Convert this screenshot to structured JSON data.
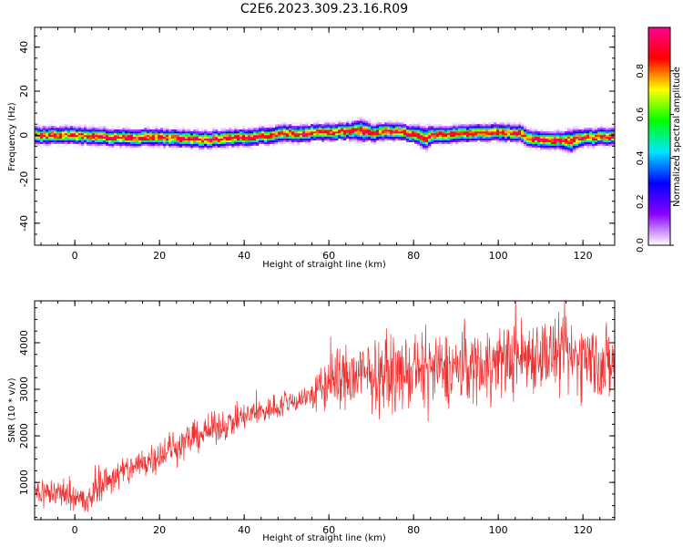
{
  "figure": {
    "title": "C2E6.2023.309.23.16.R09"
  },
  "chart_data": [
    {
      "type": "heatmap",
      "name": "spectrogram",
      "xlabel": "Height of straight line (km)",
      "ylabel": "Frequency (Hz)",
      "xlim": [
        -9.5,
        127.5
      ],
      "ylim": [
        -50,
        49
      ],
      "x_ticks": [
        0,
        20,
        40,
        60,
        80,
        100,
        120
      ],
      "y_ticks": [
        -40,
        -20,
        0,
        20,
        40
      ],
      "colorbar": {
        "label": "Normalized spectral amplitude",
        "range": [
          0,
          1
        ],
        "ticks": [
          0.0,
          0.2,
          0.4,
          0.6,
          0.8
        ],
        "tick_labels": [
          "0.0",
          "0.2",
          "0.4",
          "0.6",
          "0.8"
        ],
        "colormap": [
          "#ffffff",
          "#8a00ff",
          "#0000ff",
          "#00e5ff",
          "#00ff00",
          "#ffff00",
          "#ff0000",
          "#ff0090"
        ]
      },
      "ridge": {
        "x": [
          -9,
          0,
          10,
          20,
          30,
          40,
          44,
          50,
          55,
          60,
          65,
          68,
          70,
          75,
          80,
          83,
          85,
          90,
          95,
          100,
          105,
          108,
          110,
          115,
          117,
          120,
          127
        ],
        "y": [
          0,
          0,
          -1,
          -1,
          -2,
          -1,
          -0.5,
          1,
          1,
          1.5,
          2,
          2.5,
          1,
          2,
          0.5,
          -1,
          0,
          0.5,
          1,
          1.5,
          1,
          -2,
          -2,
          -2,
          -3,
          -1,
          -0.5
        ],
        "half_width_hz": [
          3,
          3,
          3,
          3,
          3,
          3,
          3,
          3,
          3,
          3,
          3,
          4,
          3,
          3,
          3,
          4,
          3,
          3,
          3,
          3,
          3,
          3,
          3,
          3,
          4,
          3,
          3
        ]
      },
      "grid": false
    },
    {
      "type": "line",
      "name": "snr",
      "xlabel": "Height of straight line (km)",
      "ylabel": "SNR (10 * v/v)",
      "xlim": [
        -9.5,
        127.5
      ],
      "ylim": [
        200,
        4900
      ],
      "x_ticks": [
        0,
        20,
        40,
        60,
        80,
        100,
        120
      ],
      "y_ticks": [
        1000,
        2000,
        3000,
        4000
      ],
      "series_color": "#ee3030",
      "trend": {
        "x": [
          -9.5,
          0,
          3,
          5,
          10,
          20,
          30,
          40,
          50,
          55,
          58,
          60,
          70,
          80,
          90,
          100,
          105,
          110,
          115,
          120,
          125,
          127.5
        ],
        "y": [
          800,
          750,
          500,
          900,
          1150,
          1600,
          2050,
          2400,
          2700,
          2850,
          2950,
          3200,
          3300,
          3350,
          3450,
          3600,
          3700,
          3800,
          3650,
          3700,
          3550,
          3500
        ]
      },
      "noise_amplitude": {
        "x": [
          -9.5,
          20,
          55,
          60,
          127.5
        ],
        "y": [
          250,
          280,
          200,
          550,
          650
        ]
      },
      "grid": false
    }
  ]
}
